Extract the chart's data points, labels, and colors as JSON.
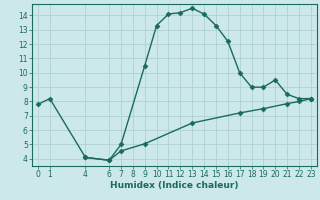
{
  "line1_x": [
    0,
    1,
    4,
    6,
    7,
    9,
    10,
    11,
    12,
    13,
    14,
    15,
    16,
    17,
    18,
    19,
    20,
    21,
    22,
    23
  ],
  "line1_y": [
    7.8,
    8.2,
    4.1,
    3.9,
    5.0,
    10.5,
    13.3,
    14.1,
    14.2,
    14.5,
    14.1,
    13.3,
    12.2,
    10.0,
    9.0,
    9.0,
    9.5,
    8.5,
    8.2,
    8.2
  ],
  "line2_x": [
    4,
    6,
    7,
    9,
    13,
    17,
    19,
    21,
    22,
    23
  ],
  "line2_y": [
    4.1,
    3.9,
    4.55,
    5.05,
    6.5,
    7.2,
    7.5,
    7.85,
    8.0,
    8.2
  ],
  "line_color": "#1a6b5a",
  "bg_color": "#cce8e8",
  "xlim": [
    -0.5,
    23.5
  ],
  "ylim": [
    3.5,
    14.8
  ],
  "xlabel": "Humidex (Indice chaleur)",
  "xticks": [
    0,
    1,
    4,
    6,
    7,
    8,
    9,
    10,
    11,
    12,
    13,
    14,
    15,
    16,
    17,
    18,
    19,
    20,
    21,
    22,
    23
  ],
  "yticks": [
    4,
    5,
    6,
    7,
    8,
    9,
    10,
    11,
    12,
    13,
    14
  ],
  "grid_color": "#aacece",
  "marker": "D",
  "markersize": 2.5,
  "linewidth": 1.0
}
